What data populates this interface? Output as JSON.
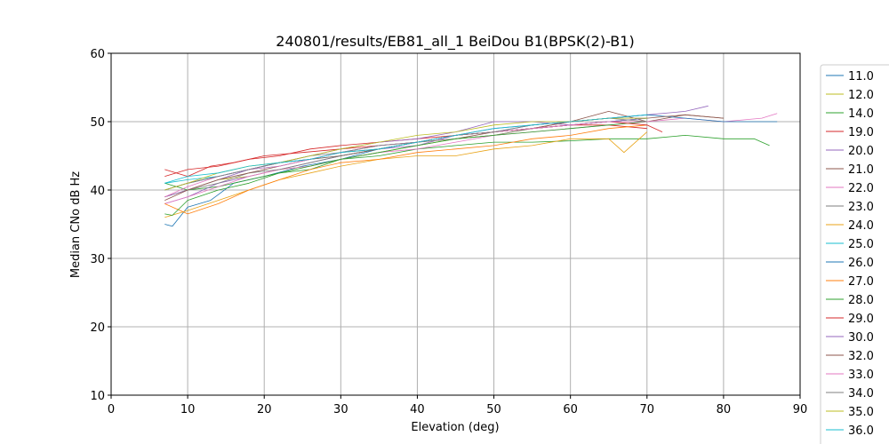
{
  "chart_data": {
    "type": "line",
    "title": "240801/results/EB81_all_1 BeiDou B1(BPSK(2)-B1)",
    "xlabel": "Elevation (deg)",
    "ylabel": "Median CNo dB Hz",
    "xlim": [
      0,
      90
    ],
    "ylim": [
      10,
      60
    ],
    "xticks": [
      0,
      10,
      20,
      30,
      40,
      50,
      60,
      70,
      80,
      90
    ],
    "yticks": [
      10,
      20,
      30,
      40,
      50,
      60
    ],
    "grid": true,
    "legend_position": "right-outside",
    "series": [
      {
        "name": "11.0",
        "color": "#1f77b4",
        "x": [
          7,
          8,
          10,
          13,
          16,
          20,
          25,
          30,
          35,
          40,
          45,
          50,
          55,
          60,
          65,
          70
        ],
        "y": [
          35,
          34.7,
          37.5,
          38.5,
          41,
          42,
          43.5,
          44.5,
          46,
          47,
          48,
          48.5,
          49,
          49.5,
          50,
          50.5
        ]
      },
      {
        "name": "12.0",
        "color": "#bcbd22",
        "x": [
          7,
          10,
          14,
          18,
          22,
          26,
          30,
          35,
          40,
          45,
          50,
          55,
          60,
          65,
          70
        ],
        "y": [
          39,
          40,
          41.5,
          42,
          43,
          43.5,
          44.5,
          45.5,
          46.5,
          47.5,
          48,
          49,
          49.5,
          50,
          50.5
        ]
      },
      {
        "name": "14.0",
        "color": "#2ca02c",
        "x": [
          7,
          10,
          14,
          18,
          22,
          26,
          30,
          35,
          40,
          45,
          50,
          55,
          60,
          65,
          70,
          75,
          80,
          84,
          86
        ],
        "y": [
          41,
          40,
          40.5,
          41.5,
          42.5,
          43,
          44.5,
          45,
          46,
          46.5,
          47,
          47,
          47.2,
          47.5,
          47.5,
          48,
          47.5,
          47.5,
          46.5
        ]
      },
      {
        "name": "19.0",
        "color": "#d62728",
        "x": [
          7,
          10,
          13,
          16,
          20,
          25,
          30,
          35,
          40,
          45,
          50,
          55,
          60,
          65,
          70
        ],
        "y": [
          43,
          42,
          43.5,
          44,
          45,
          45.5,
          46,
          46.5,
          47,
          48,
          48.5,
          49,
          49.5,
          49.5,
          49
        ]
      },
      {
        "name": "20.0",
        "color": "#9467bd",
        "x": [
          7,
          10,
          14,
          18,
          22,
          26,
          30,
          35,
          40,
          45,
          50,
          55,
          60,
          65,
          70,
          75,
          78
        ],
        "y": [
          38,
          39,
          41,
          42,
          43,
          44,
          45,
          46,
          46.5,
          48,
          49,
          49.5,
          50,
          50.5,
          51,
          51.5,
          52.3
        ]
      },
      {
        "name": "21.0",
        "color": "#8c564b",
        "x": [
          7,
          10,
          14,
          18,
          22,
          26,
          30,
          35,
          40,
          45,
          50,
          55,
          60,
          65,
          70,
          75,
          80
        ],
        "y": [
          40,
          41,
          42,
          43,
          44,
          44.5,
          45.5,
          46,
          47,
          47.5,
          48.5,
          49,
          50,
          51.5,
          50,
          51,
          50.5
        ]
      },
      {
        "name": "22.0",
        "color": "#e377c2",
        "x": [
          7,
          10,
          14,
          18,
          22,
          26,
          30,
          35,
          40,
          45,
          50,
          55,
          60,
          65,
          70,
          75,
          80,
          85,
          87
        ],
        "y": [
          38,
          39,
          40.5,
          42,
          43,
          43.5,
          44.5,
          45.5,
          46,
          47,
          48,
          48.5,
          49,
          49.5,
          50,
          50.5,
          50,
          50.5,
          51.2
        ]
      },
      {
        "name": "23.0",
        "color": "#7f7f7f",
        "x": [
          7,
          10,
          14,
          18,
          22,
          26,
          30,
          35,
          40,
          45,
          50,
          55,
          60,
          65,
          70
        ],
        "y": [
          39,
          40,
          41,
          42.5,
          43,
          44,
          45,
          46,
          47,
          47.5,
          48,
          49,
          49.5,
          50,
          50
        ]
      },
      {
        "name": "24.0",
        "color": "#e8a317",
        "x": [
          7,
          10,
          14,
          18,
          22,
          26,
          30,
          35,
          40,
          45,
          50,
          55,
          60,
          65,
          67,
          70
        ],
        "y": [
          36,
          37,
          38.5,
          40,
          41.5,
          42.5,
          43.5,
          44.5,
          45,
          45,
          46,
          46.5,
          47.5,
          47.5,
          45.5,
          48.5
        ]
      },
      {
        "name": "25.0",
        "color": "#17becf",
        "x": [
          7,
          10,
          14,
          18,
          22,
          26,
          30,
          35,
          40,
          45,
          50,
          55,
          60,
          65,
          70
        ],
        "y": [
          41,
          41.5,
          42,
          43,
          43.5,
          44.5,
          45,
          46,
          47,
          48,
          48.5,
          49,
          49.5,
          50,
          50.5
        ]
      },
      {
        "name": "26.0",
        "color": "#1f77b4",
        "x": [
          7,
          10,
          14,
          18,
          22,
          26,
          30,
          35,
          40,
          45,
          50,
          55,
          60,
          65,
          70,
          75,
          80,
          87
        ],
        "y": [
          40,
          41,
          42,
          43,
          44,
          44.5,
          45.5,
          46.5,
          47,
          48,
          48.5,
          49.5,
          50,
          50.5,
          51,
          50.5,
          50,
          50
        ]
      },
      {
        "name": "27.0",
        "color": "#ff7f0e",
        "x": [
          7,
          10,
          14,
          18,
          22,
          26,
          30,
          35,
          40,
          45,
          50,
          55,
          60,
          65,
          70
        ],
        "y": [
          38,
          36.5,
          38,
          40,
          41.5,
          43,
          44,
          44.5,
          45.5,
          46,
          46.5,
          47.5,
          48,
          49,
          49.5
        ]
      },
      {
        "name": "28.0",
        "color": "#2ca02c",
        "x": [
          7,
          8,
          10,
          14,
          18,
          22,
          26,
          30,
          35,
          40,
          45,
          50,
          55,
          60,
          65,
          70
        ],
        "y": [
          36.5,
          36.3,
          38.5,
          40,
          41,
          42.5,
          43.5,
          44.5,
          45.5,
          46.5,
          47.5,
          48,
          48.5,
          49,
          49.5,
          50
        ]
      },
      {
        "name": "29.0",
        "color": "#d62728",
        "x": [
          7,
          10,
          14,
          18,
          22,
          26,
          30,
          35,
          40,
          45,
          50,
          55,
          60,
          65,
          70,
          72
        ],
        "y": [
          42,
          43,
          43.5,
          44.5,
          45,
          46,
          46.5,
          47,
          47.5,
          48,
          48.5,
          49,
          49.5,
          50,
          49.5,
          48.5
        ]
      },
      {
        "name": "30.0",
        "color": "#9467bd",
        "x": [
          7,
          10,
          14,
          18,
          22,
          26,
          30,
          35,
          40,
          45,
          50,
          55,
          60,
          65,
          70
        ],
        "y": [
          39,
          40,
          41.5,
          43,
          44,
          45,
          46,
          47,
          47.5,
          48.5,
          50,
          50,
          49.5,
          50,
          50.5
        ]
      },
      {
        "name": "32.0",
        "color": "#8c564b",
        "x": [
          7,
          10,
          14,
          18,
          22,
          26,
          30,
          35,
          40,
          45,
          50,
          55,
          60,
          65,
          70,
          75,
          80
        ],
        "y": [
          38.5,
          40,
          41.5,
          42.5,
          43.5,
          44.5,
          45,
          46,
          47,
          48,
          48.5,
          49,
          50,
          50.5,
          50.5,
          51,
          50.5
        ]
      },
      {
        "name": "33.0",
        "color": "#e377c2",
        "x": [
          7,
          10,
          14,
          18,
          22,
          26,
          30,
          35,
          40,
          45,
          50,
          55,
          60,
          65,
          70
        ],
        "y": [
          39,
          40.5,
          42,
          43,
          43.5,
          44.5,
          45.5,
          46.5,
          47,
          48,
          48.5,
          49,
          49.5,
          50,
          50
        ]
      },
      {
        "name": "34.0",
        "color": "#7f7f7f",
        "x": [
          7,
          10,
          14,
          18,
          22,
          26,
          30,
          35,
          40,
          45,
          50,
          55,
          60,
          65,
          70
        ],
        "y": [
          40,
          41,
          42,
          43,
          44,
          45,
          45.5,
          46.5,
          47,
          48,
          48.5,
          49.5,
          50,
          50.5,
          50
        ]
      },
      {
        "name": "35.0",
        "color": "#bcbd22",
        "x": [
          7,
          10,
          14,
          18,
          22,
          26,
          30,
          35,
          40,
          45,
          50,
          55,
          60,
          65,
          70
        ],
        "y": [
          40,
          41,
          42.5,
          43.5,
          44,
          45,
          46,
          47,
          48,
          48.5,
          49.5,
          50,
          50,
          50.5,
          50.5
        ]
      },
      {
        "name": "36.0",
        "color": "#17becf",
        "x": [
          7,
          10,
          14,
          18,
          22,
          26,
          30,
          35,
          40,
          45,
          50,
          55,
          60,
          65,
          70
        ],
        "y": [
          41,
          42,
          42.5,
          43.5,
          44,
          44.5,
          45.5,
          46,
          47,
          48,
          49,
          49.5,
          50,
          50.5,
          51
        ]
      }
    ]
  }
}
